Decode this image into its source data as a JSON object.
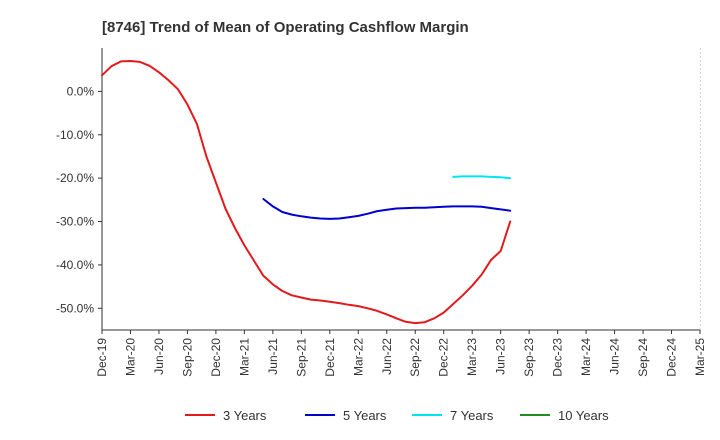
{
  "chart_data": {
    "type": "line",
    "title": "[8746]  Trend of Mean of Operating Cashflow Margin",
    "xlabel": "",
    "ylabel": "",
    "ylim": [
      -55,
      10
    ],
    "y_ticks": [
      0,
      -10,
      -20,
      -30,
      -40,
      -50
    ],
    "y_tick_labels": [
      "0.0%",
      "-10.0%",
      "-20.0%",
      "-30.0%",
      "-40.0%",
      "-50.0%"
    ],
    "x_tick_labels": [
      "Dec-19",
      "Mar-20",
      "Jun-20",
      "Sep-20",
      "Dec-20",
      "Mar-21",
      "Jun-21",
      "Sep-21",
      "Dec-21",
      "Mar-22",
      "Jun-22",
      "Sep-22",
      "Dec-22",
      "Mar-23",
      "Jun-23",
      "Sep-23",
      "Dec-23",
      "Mar-24",
      "Jun-24",
      "Sep-24",
      "Dec-24",
      "Mar-25"
    ],
    "grid": true,
    "legend_position": "bottom",
    "series": [
      {
        "name": "3 Years",
        "color": "#e31a1c",
        "points": [
          [
            0,
            3.7
          ],
          [
            1,
            5.8
          ],
          [
            2,
            6.9
          ],
          [
            3,
            7.0
          ],
          [
            4,
            6.8
          ],
          [
            5,
            5.9
          ],
          [
            6,
            4.4
          ],
          [
            7,
            2.6
          ],
          [
            8,
            0.5
          ],
          [
            9,
            -3.0
          ],
          [
            10,
            -7.5
          ],
          [
            11,
            -15.0
          ],
          [
            12,
            -21.0
          ],
          [
            13,
            -27.0
          ],
          [
            14,
            -31.5
          ],
          [
            15,
            -35.5
          ],
          [
            16,
            -39.0
          ],
          [
            17,
            -42.5
          ],
          [
            18,
            -44.5
          ],
          [
            19,
            -46.0
          ],
          [
            20,
            -47.0
          ],
          [
            21,
            -47.5
          ],
          [
            22,
            -48.0
          ],
          [
            23,
            -48.2
          ],
          [
            24,
            -48.5
          ],
          [
            25,
            -48.8
          ],
          [
            26,
            -49.2
          ],
          [
            27,
            -49.5
          ],
          [
            28,
            -50.0
          ],
          [
            29,
            -50.6
          ],
          [
            30,
            -51.4
          ],
          [
            31,
            -52.3
          ],
          [
            32,
            -53.1
          ],
          [
            33,
            -53.4
          ],
          [
            34,
            -53.2
          ],
          [
            35,
            -52.3
          ],
          [
            36,
            -51.0
          ],
          [
            37,
            -49.0
          ],
          [
            38,
            -47.0
          ],
          [
            39,
            -44.8
          ],
          [
            40,
            -42.2
          ],
          [
            41,
            -38.8
          ],
          [
            42,
            -36.8
          ],
          [
            43,
            -30.0
          ]
        ]
      },
      {
        "name": "5 Years",
        "color": "#0000cc",
        "points": [
          [
            17,
            -24.8
          ],
          [
            18,
            -26.5
          ],
          [
            19,
            -27.8
          ],
          [
            20,
            -28.4
          ],
          [
            21,
            -28.8
          ],
          [
            22,
            -29.1
          ],
          [
            23,
            -29.3
          ],
          [
            24,
            -29.4
          ],
          [
            25,
            -29.3
          ],
          [
            26,
            -29.0
          ],
          [
            27,
            -28.7
          ],
          [
            28,
            -28.2
          ],
          [
            29,
            -27.6
          ],
          [
            30,
            -27.3
          ],
          [
            31,
            -27.0
          ],
          [
            32,
            -26.9
          ],
          [
            33,
            -26.8
          ],
          [
            34,
            -26.8
          ],
          [
            35,
            -26.7
          ],
          [
            36,
            -26.6
          ],
          [
            37,
            -26.5
          ],
          [
            38,
            -26.5
          ],
          [
            39,
            -26.5
          ],
          [
            40,
            -26.6
          ],
          [
            41,
            -26.9
          ],
          [
            42,
            -27.2
          ],
          [
            43,
            -27.5
          ]
        ]
      },
      {
        "name": "7 Years",
        "color": "#00e5ee",
        "points": [
          [
            37,
            -19.7
          ],
          [
            38,
            -19.6
          ],
          [
            39,
            -19.6
          ],
          [
            40,
            -19.6
          ],
          [
            41,
            -19.7
          ],
          [
            42,
            -19.8
          ],
          [
            43,
            -20.0
          ]
        ]
      },
      {
        "name": "10 Years",
        "color": "#228b22",
        "points": []
      }
    ]
  }
}
